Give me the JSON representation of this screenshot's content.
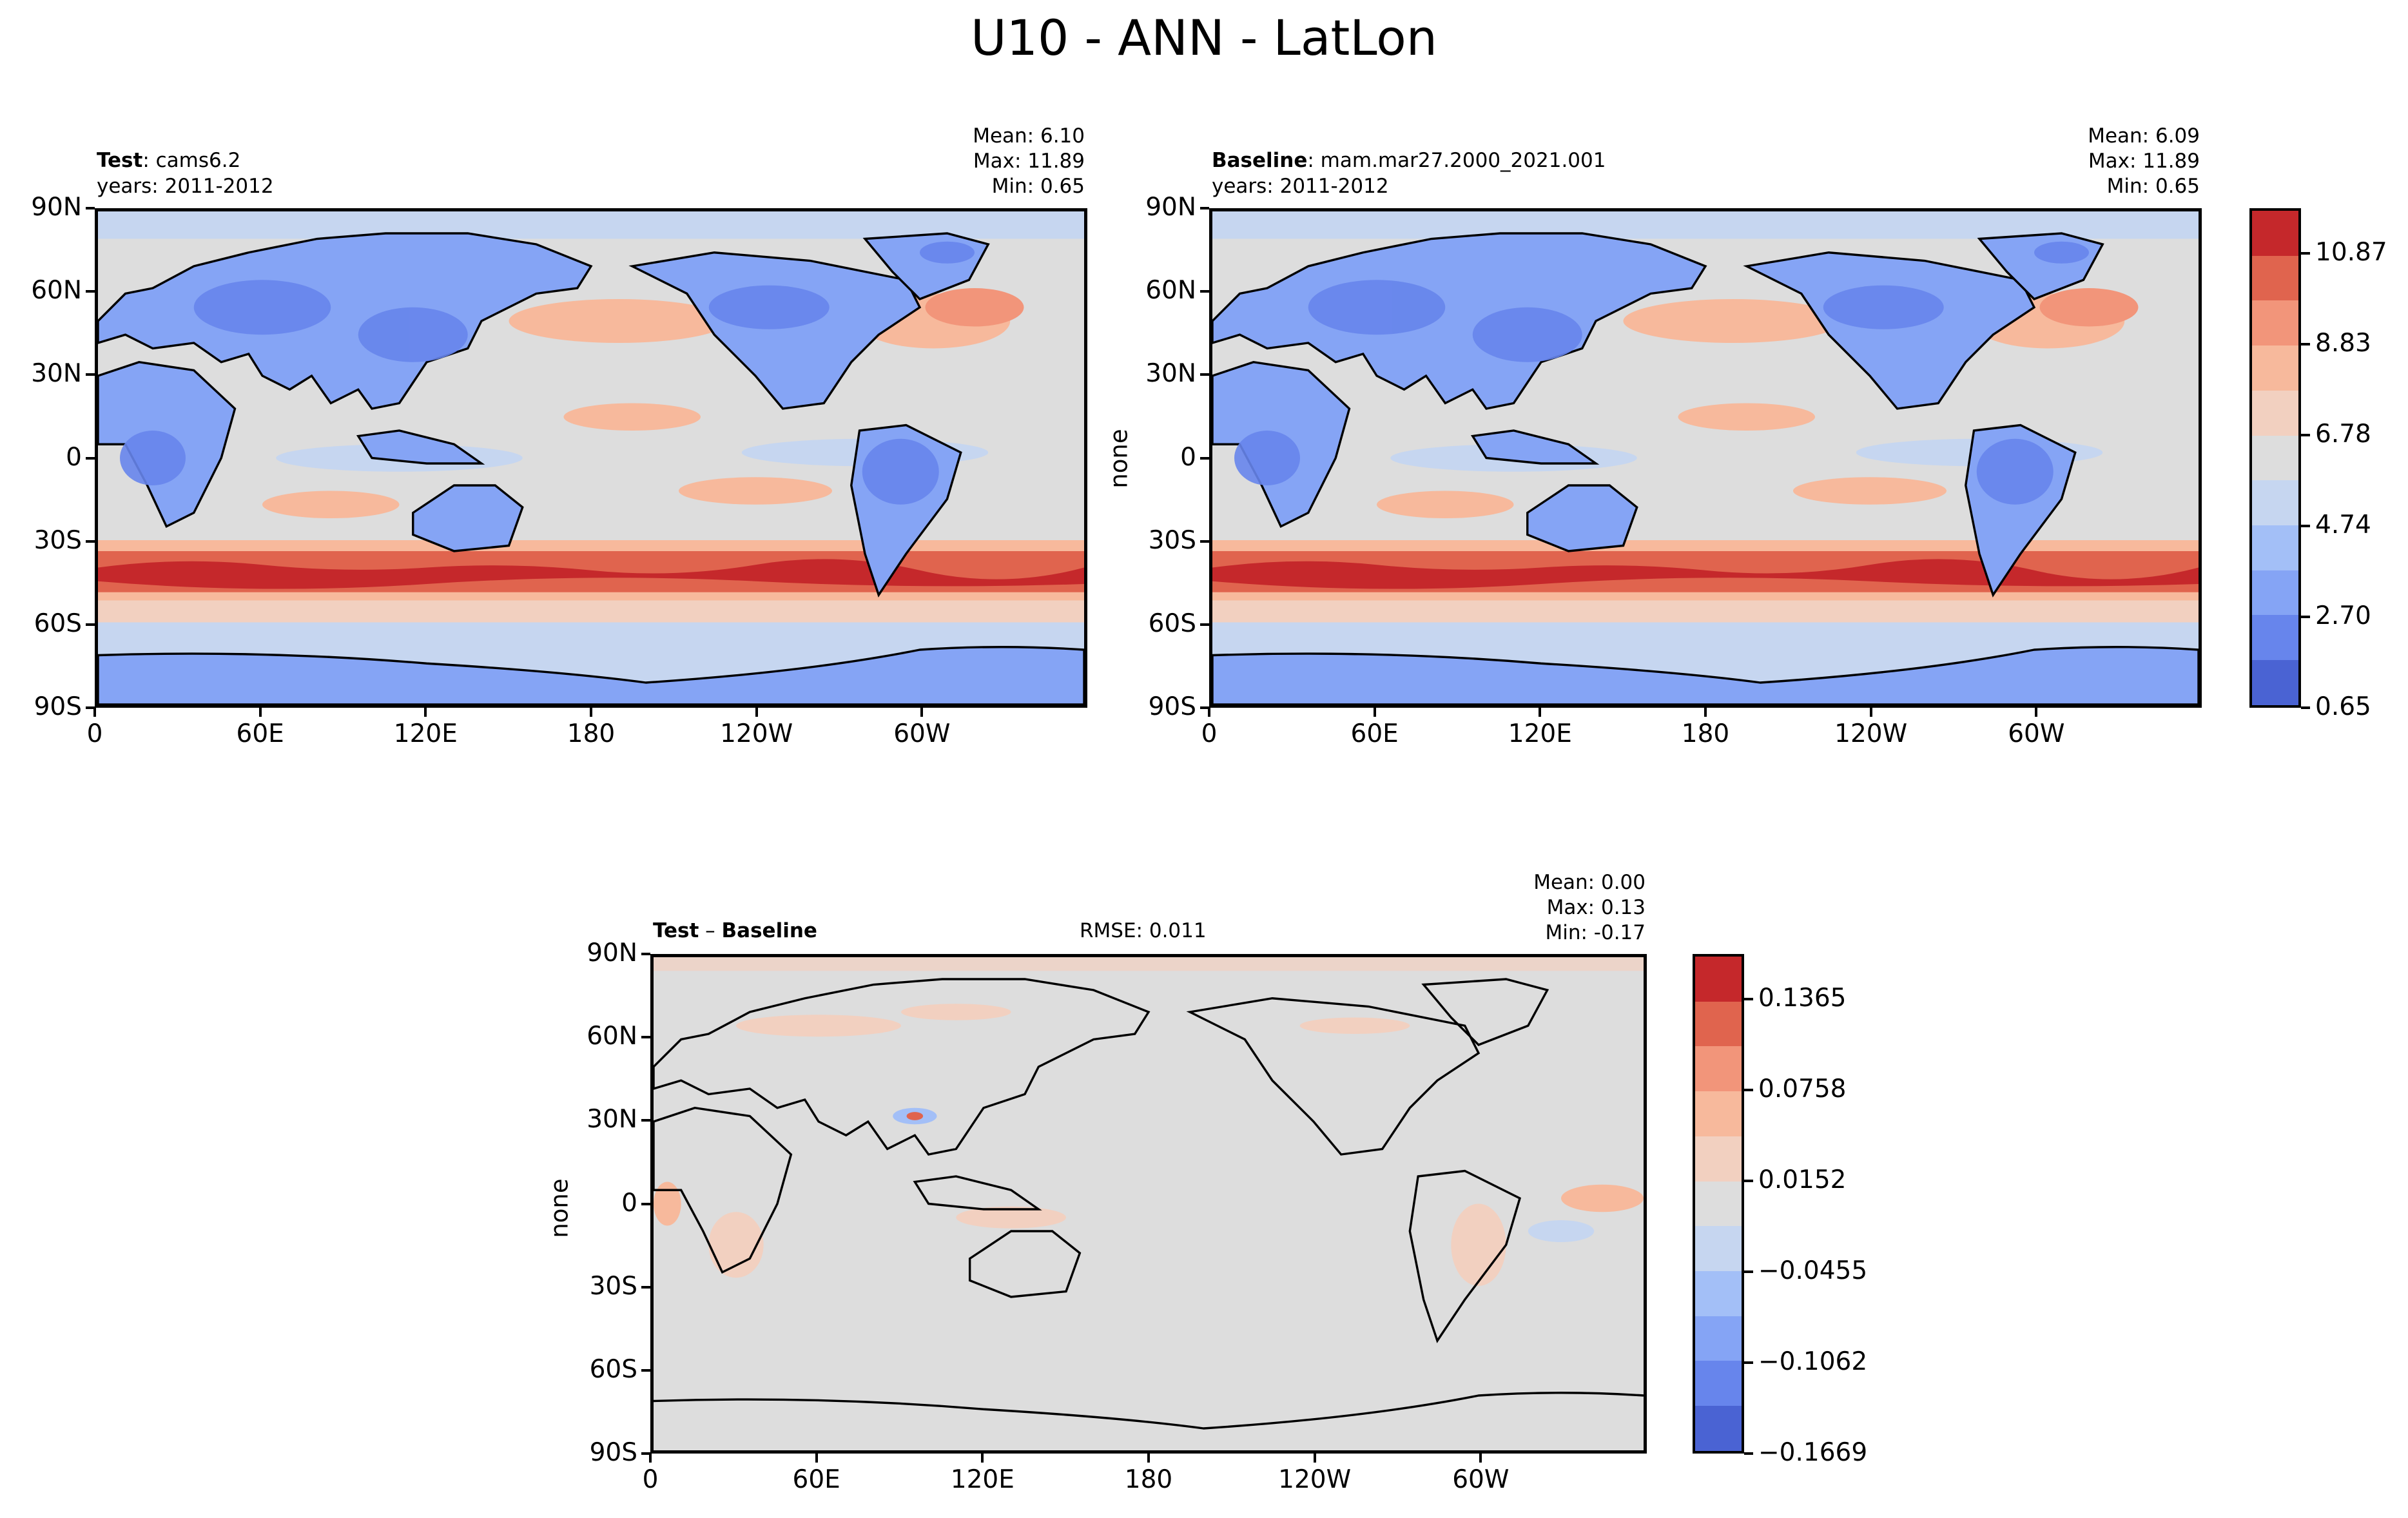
{
  "title": "U10 - ANN - LatLon",
  "panels": {
    "test": {
      "label_bold": "Test",
      "label_rest": ": cams6.2",
      "years": "years: 2011-2012",
      "mean": "Mean:  6.10",
      "max": "Max: 11.89",
      "min": "Min:  0.65",
      "ylabel": ""
    },
    "baseline": {
      "label_bold": "Baseline",
      "label_rest": ": mam.mar27.2000_2021.001",
      "years": "years: 2011-2012",
      "mean": "Mean:  6.09",
      "max": "Max: 11.89",
      "min": "Min:  0.65",
      "ylabel": "none"
    },
    "diff": {
      "label_bold": "Test",
      "label_mid": " – ",
      "label_bold2": "Baseline",
      "rmse": "RMSE: 0.011",
      "mean": "Mean:  0.00",
      "max": "Max:  0.13",
      "min": "Min: -0.17",
      "ylabel": "none"
    }
  },
  "axes": {
    "lat_ticks": [
      "90N",
      "60N",
      "30N",
      "0",
      "30S",
      "60S",
      "90S"
    ],
    "lon_ticks": [
      "0",
      "60E",
      "120E",
      "180",
      "120W",
      "60W"
    ]
  },
  "colorbars": {
    "main": {
      "labels": [
        "10.87",
        "8.83",
        "6.78",
        "4.74",
        "2.70",
        "0.65"
      ],
      "colors": [
        "#c5282b",
        "#e0644e",
        "#f2957a",
        "#f7b99c",
        "#f2d0c0",
        "#dddddd",
        "#c6d6f0",
        "#a3bff7",
        "#85a4f5",
        "#6785ec",
        "#4a63d3"
      ]
    },
    "diff": {
      "labels": [
        "0.1365",
        "0.0758",
        "0.0152",
        "−0.0455",
        "−0.1062",
        "−0.1669"
      ],
      "colors": [
        "#c5282b",
        "#e0644e",
        "#f2957a",
        "#f7b99c",
        "#f2d0c0",
        "#dddddd",
        "#c6d6f0",
        "#a3bff7",
        "#85a4f5",
        "#6785ec",
        "#4a63d3"
      ]
    }
  },
  "map_data": {
    "projection": "PlateCarree, central longitude 180°, 0–360°E",
    "field": "10 m wind speed annual mean"
  }
}
